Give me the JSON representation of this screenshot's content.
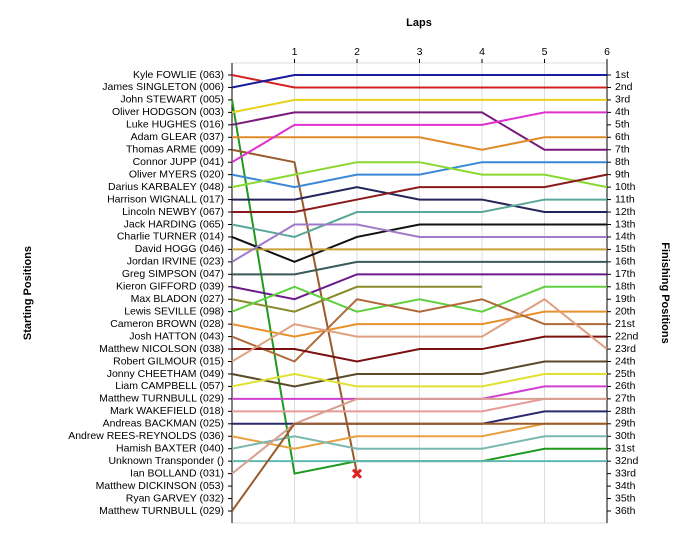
{
  "chart_data": {
    "type": "lap",
    "x_label": "Laps",
    "y_label": "Starting Positions",
    "y2_label": "Finishing Positions",
    "x": [
      0,
      1,
      2,
      3,
      4,
      5,
      6
    ],
    "xlim": [
      0,
      6
    ],
    "xticks": [
      1,
      2,
      3,
      4,
      5,
      6
    ],
    "ylim": [
      36,
      1
    ],
    "grid": true,
    "categories": [
      "Kyle FOWLIE (063)",
      "James SINGLETON (006)",
      "John STEWART (005)",
      "Oliver HODGSON (003)",
      "Luke HUGHES (016)",
      "Adam GLEAR (037)",
      "Thomas ARME (009)",
      "Connor JUPP (041)",
      "Oliver MYERS (020)",
      "Darius KARBALEY (048)",
      "Harrison WIGNALL (017)",
      "Lincoln NEWBY (067)",
      "Jack HARDING (065)",
      "Charlie TURNER (014)",
      "David HOGG (046)",
      "Jordan IRVINE (023)",
      "Greg SIMPSON (047)",
      "Kieron GIFFORD (039)",
      "Max BLADON (027)",
      "Lewis SEVILLE (098)",
      "Cameron BROWN (028)",
      "Josh HATTON (043)",
      "Matthew NICOLSON (038)",
      "Robert GILMOUR (015)",
      "Jonny CHEETHAM (049)",
      "Liam CAMPBELL (057)",
      "Matthew TURNBULL (029)",
      "Mark WAKEFIELD (018)",
      "Andreas BACKMAN (025)",
      "Andrew REES-REYNOLDS (036)",
      "Hamish BAXTER (040)",
      "Unknown Transponder ()",
      "Ian BOLLAND (031)",
      "Matthew DICKINSON (053)",
      "Ryan GARVEY (032)",
      "Matthew TURNBULL (029)"
    ],
    "finishing_labels": [
      "1st",
      "2nd",
      "3rd",
      "4th",
      "5th",
      "6th",
      "7th",
      "8th",
      "9th",
      "10th",
      "11th",
      "12th",
      "13th",
      "14th",
      "15th",
      "16th",
      "17th",
      "18th",
      "19th",
      "20th",
      "21st",
      "22nd",
      "23rd",
      "24th",
      "25th",
      "26th",
      "27th",
      "28th",
      "29th",
      "30th",
      "31st",
      "32nd",
      "33rd",
      "34th",
      "35th",
      "36th"
    ],
    "series": [
      {
        "color": "#d62020",
        "values": [
          1,
          2,
          2,
          2,
          2,
          2,
          2
        ]
      },
      {
        "color": "#1a1aa0",
        "values": [
          2,
          1,
          1,
          1,
          1,
          1,
          1
        ]
      },
      {
        "color": "#1f9a1f",
        "values": [
          3,
          33,
          32,
          32,
          32,
          31,
          31
        ]
      },
      {
        "color": "#e6d21a",
        "values": [
          4,
          3,
          3,
          3,
          3,
          3,
          3
        ]
      },
      {
        "color": "#7a1a7a",
        "values": [
          5,
          4,
          4,
          4,
          4,
          7,
          7
        ]
      },
      {
        "color": "#e08a2a",
        "values": [
          6,
          6,
          6,
          6,
          7,
          6,
          6
        ]
      },
      {
        "color": "#9a5a2a",
        "values": [
          7,
          8,
          33,
          null,
          null,
          null,
          null
        ],
        "retired": true
      },
      {
        "color": "#e030d0",
        "values": [
          8,
          5,
          5,
          5,
          5,
          4,
          4
        ]
      },
      {
        "color": "#3a88d8",
        "values": [
          9,
          10,
          9,
          9,
          8,
          8,
          8
        ]
      },
      {
        "color": "#88d830",
        "values": [
          10,
          9,
          8,
          8,
          9,
          9,
          10
        ]
      },
      {
        "color": "#24245a",
        "values": [
          11,
          11,
          10,
          11,
          11,
          12,
          12
        ]
      },
      {
        "color": "#8a1a1a",
        "values": [
          12,
          12,
          11,
          10,
          10,
          10,
          9
        ]
      },
      {
        "color": "#5aa89a",
        "values": [
          13,
          14,
          12,
          12,
          12,
          11,
          11
        ]
      },
      {
        "color": "#111111",
        "values": [
          14,
          16,
          14,
          13,
          13,
          13,
          13
        ]
      },
      {
        "color": "#c8a03a",
        "values": [
          15,
          15,
          15,
          15,
          15,
          15,
          15
        ]
      },
      {
        "color": "#a07ac8",
        "values": [
          16,
          13,
          13,
          14,
          14,
          14,
          14
        ]
      },
      {
        "color": "#3a5a5a",
        "values": [
          17,
          17,
          16,
          16,
          16,
          16,
          16
        ]
      },
      {
        "color": "#6a1a8a",
        "values": [
          18,
          19,
          17,
          17,
          17,
          17,
          17
        ]
      },
      {
        "color": "#8a8a2a",
        "values": [
          19,
          20,
          18,
          18,
          18,
          null,
          null
        ]
      },
      {
        "color": "#60d040",
        "values": [
          20,
          18,
          20,
          19,
          20,
          18,
          18
        ]
      },
      {
        "color": "#e8902a",
        "values": [
          21,
          22,
          21,
          21,
          21,
          20,
          20
        ]
      },
      {
        "color": "#b06a3a",
        "values": [
          22,
          24,
          19,
          20,
          19,
          21,
          21
        ]
      },
      {
        "color": "#7a1010",
        "values": [
          23,
          23,
          24,
          23,
          23,
          22,
          22
        ]
      },
      {
        "color": "#e0a080",
        "values": [
          24,
          21,
          22,
          22,
          22,
          19,
          23
        ]
      },
      {
        "color": "#5a4a2a",
        "values": [
          25,
          26,
          25,
          25,
          25,
          24,
          24
        ]
      },
      {
        "color": "#e0e030",
        "values": [
          26,
          25,
          26,
          26,
          26,
          25,
          25
        ]
      },
      {
        "color": "#d040d0",
        "values": [
          27,
          27,
          27,
          27,
          27,
          26,
          26
        ]
      },
      {
        "color": "#e89a9a",
        "values": [
          28,
          28,
          28,
          28,
          28,
          27,
          27
        ]
      },
      {
        "color": "#2a2a6a",
        "values": [
          29,
          29,
          29,
          29,
          29,
          28,
          28
        ]
      },
      {
        "color": "#e8a040",
        "values": [
          30,
          31,
          30,
          30,
          30,
          29,
          29
        ]
      },
      {
        "color": "#7ab8b0",
        "values": [
          31,
          30,
          31,
          31,
          31,
          30,
          30
        ]
      },
      {
        "color": "#60b8b0",
        "values": [
          32,
          32,
          32,
          32,
          32,
          32,
          32
        ]
      },
      {
        "color": "#d8a090",
        "values": [
          33,
          29,
          27,
          27,
          27,
          27,
          27
        ]
      },
      {
        "color": "#999999",
        "values": [
          null,
          null,
          null,
          null,
          null,
          null,
          null
        ]
      },
      {
        "color": "#999999",
        "values": [
          null,
          null,
          null,
          null,
          null,
          null,
          null
        ]
      },
      {
        "color": "#9a5a2a",
        "values": [
          36,
          29,
          29,
          29,
          29,
          29,
          29
        ]
      }
    ]
  }
}
